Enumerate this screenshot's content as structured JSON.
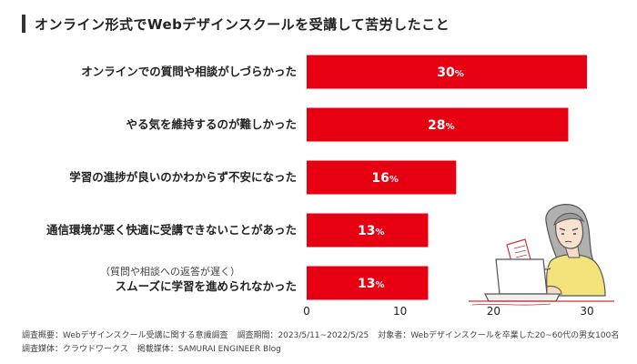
{
  "title": "オンライン形式でWebデザインスクールを受講して苦労したこと",
  "chart_data": {
    "type": "bar",
    "orientation": "horizontal",
    "categories": [
      "オンラインでの質問や相談がしづらかった",
      "やる気を維持するのが難しかった",
      "学習の進捗が良いのかわからず不安になった",
      "通信環境が悪く快適に受講できないことがあった",
      "スムーズに学習を進められなかった"
    ],
    "category_notes": [
      "",
      "",
      "",
      "",
      "（質問や相談への返答が遅く）"
    ],
    "values": [
      30,
      28,
      16,
      13,
      13
    ],
    "value_labels": [
      "30",
      "28",
      "16",
      "13",
      "13"
    ],
    "value_unit": "%",
    "xlim": [
      0,
      30
    ],
    "xticks": [
      "0",
      "10",
      "20",
      "30"
    ],
    "bar_color": "#e60012",
    "grid": false
  },
  "footer": {
    "survey_label": "調査概要：Webデザインスクール受講に関する意識調査",
    "period_label": "調査期間：2023/5/11~2022/5/25",
    "target_label": "対象者：Webデザインスクールを卒業した20~60代の男女100名",
    "media_label": "調査媒体：クラウドワークス",
    "published_label": "掲載媒体：SAMURAI ENGINEER Blog"
  },
  "illustration": {
    "icon": "person-at-laptop-icon"
  }
}
